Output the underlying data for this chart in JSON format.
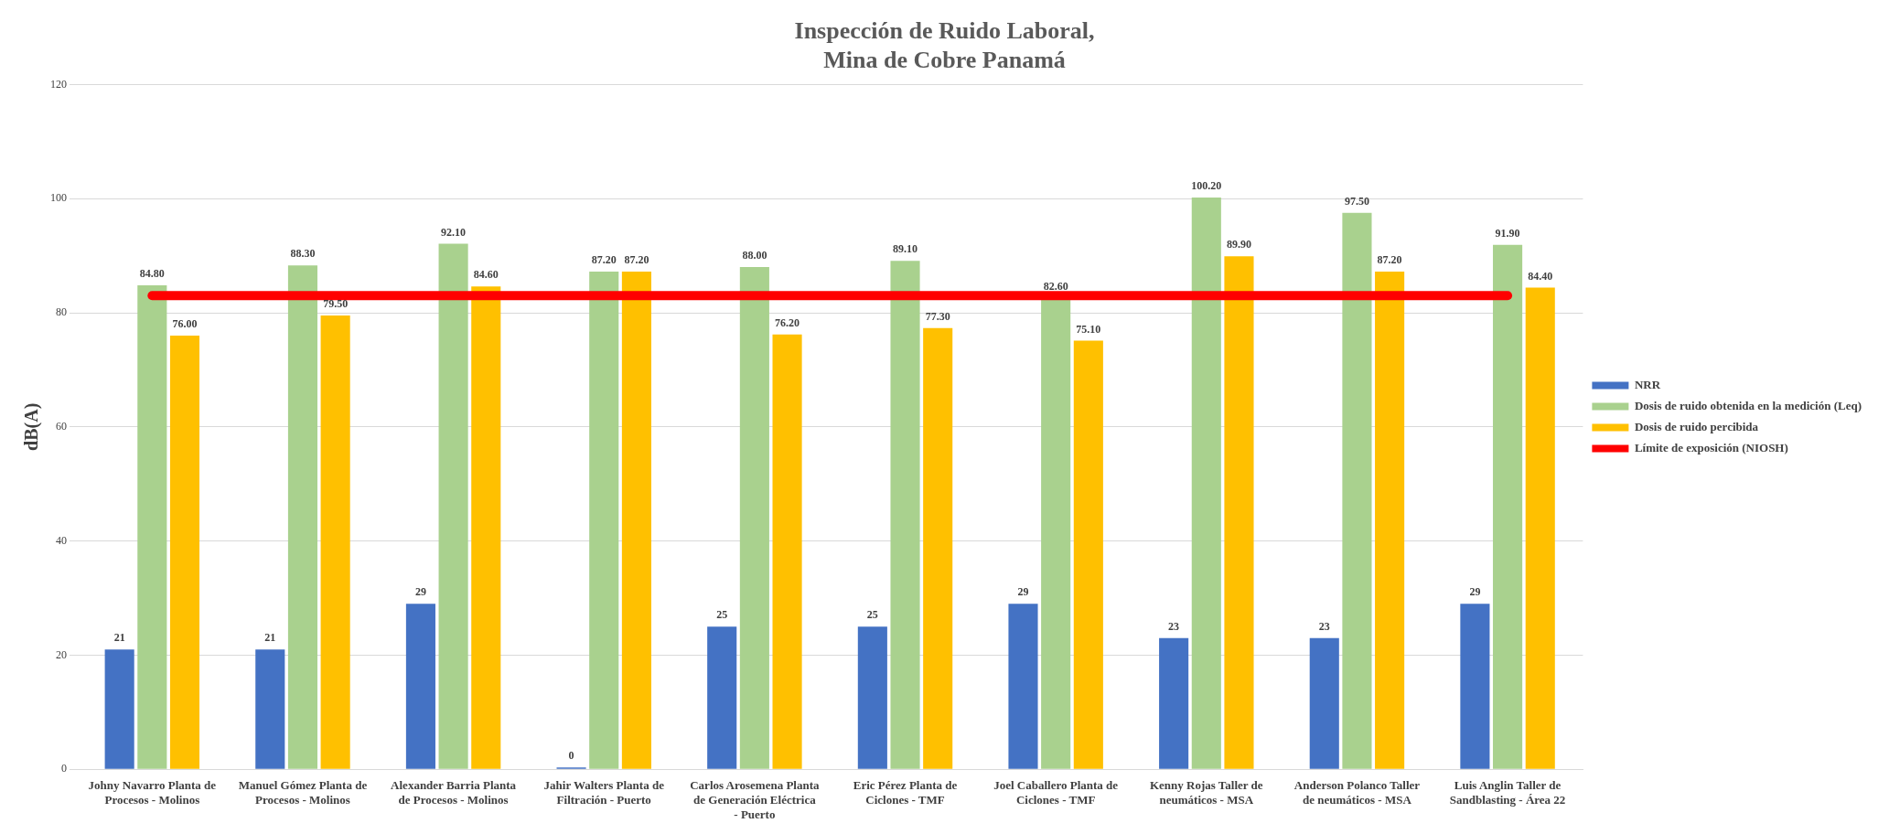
{
  "chart_data": {
    "type": "bar",
    "title": "Inspección de Ruido Laboral,\nMina de Cobre Panamá",
    "ylabel": "dB(A)",
    "categories": [
      "Johny Navarro Planta de Procesos - Molinos",
      "Manuel Gómez Planta de Procesos - Molinos",
      "Alexander Barria Planta de Procesos - Molinos",
      "Jahir Walters Planta de Filtración - Puerto",
      "Carlos Arosemena Planta de Generación Eléctrica - Puerto",
      "Eric Pérez Planta de Ciclones - TMF",
      "Joel Caballero Planta de Ciclones - TMF",
      "Kenny Rojas Taller de neumáticos - MSA",
      "Anderson Polanco Taller de neumáticos - MSA",
      "Luis Anglin Taller de Sandblasting - Área 22"
    ],
    "series": [
      {
        "name": "NRR",
        "color": "#4472c4",
        "values": [
          21,
          21,
          29,
          0,
          25,
          25,
          29,
          23,
          23,
          29
        ],
        "value_labels": [
          "21",
          "21",
          "29",
          "0",
          "25",
          "25",
          "29",
          "23",
          "23",
          "29"
        ]
      },
      {
        "name": "Dosis de ruido obtenida en la medición (Leq)",
        "color": "#a9d18e",
        "values": [
          84.8,
          88.3,
          92.1,
          87.2,
          88.0,
          89.1,
          82.6,
          100.2,
          97.5,
          91.9
        ],
        "value_labels": [
          "84.80",
          "88.30",
          "92.10",
          "87.20",
          "88.00",
          "89.10",
          "82.60",
          "100.20",
          "97.50",
          "91.90"
        ]
      },
      {
        "name": "Dosis de ruido percibida",
        "color": "#ffc000",
        "values": [
          76.0,
          79.5,
          84.6,
          87.2,
          76.2,
          77.3,
          75.1,
          89.9,
          87.2,
          84.4
        ],
        "value_labels": [
          "76.00",
          "79.50",
          "84.60",
          "87.20",
          "76.20",
          "77.30",
          "75.10",
          "89.90",
          "87.20",
          "84.40"
        ]
      },
      {
        "name": "Límite de exposición (NIOSH)",
        "type": "line",
        "color": "#ff0000",
        "values": [
          83,
          83,
          83,
          83,
          83,
          83,
          83,
          83,
          83,
          83
        ]
      }
    ],
    "ylim": [
      0,
      120
    ],
    "yticks": [
      0,
      20,
      40,
      60,
      80,
      100,
      120
    ],
    "grid": "y",
    "legend": "right",
    "marker": "none"
  }
}
